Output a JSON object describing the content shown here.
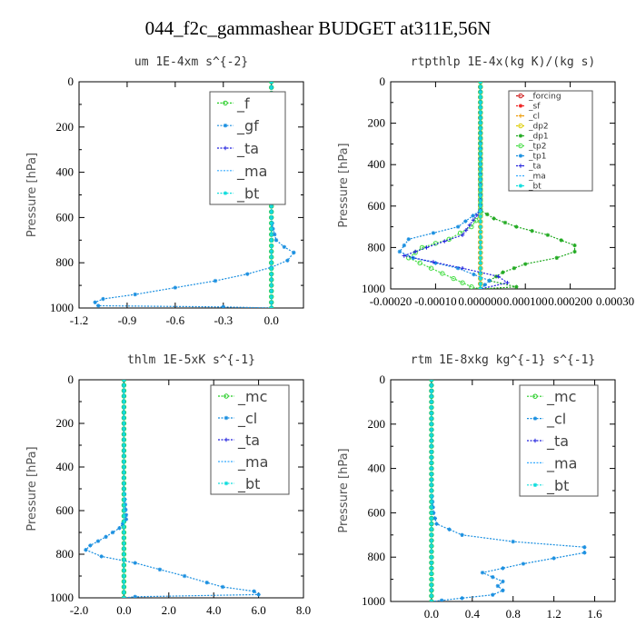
{
  "figure": {
    "title": "044_f2c_gammashear  BUDGET at311E,56N"
  },
  "chart_data": [
    {
      "type": "line",
      "title": "um   1E-4xm  s^{-2}",
      "ylabel": "Pressure [hPa]",
      "xlim": [
        -1.2,
        0.2
      ],
      "ylim": [
        1000,
        0
      ],
      "xticks": [
        "-1.2",
        "-0.9",
        "-0.6",
        "-0.3",
        "0.0"
      ],
      "xtick_values": [
        -1.2,
        -0.9,
        -0.6,
        -0.3,
        0.0
      ],
      "yticks": [
        "0",
        "200",
        "400",
        "600",
        "800",
        "1000"
      ],
      "legend_style": "big",
      "series": [
        {
          "name": "_f",
          "color": "#22cc22",
          "marker": "o",
          "values": [
            [
              0,
              0
            ],
            [
              0,
              100
            ],
            [
              0,
              200
            ],
            [
              0,
              300
            ],
            [
              0,
              400
            ],
            [
              0,
              500
            ],
            [
              0,
              600
            ],
            [
              0,
              700
            ],
            [
              0,
              800
            ],
            [
              0,
              900
            ],
            [
              0,
              1000
            ]
          ]
        },
        {
          "name": "_gf",
          "color": "#1a8fe0",
          "marker": "*",
          "values": [
            [
              0,
              0
            ],
            [
              0,
              300
            ],
            [
              0,
              500
            ],
            [
              0,
              600
            ],
            [
              0.01,
              650
            ],
            [
              0.03,
              700
            ],
            [
              0.08,
              730
            ],
            [
              0.14,
              755
            ],
            [
              0.1,
              790
            ],
            [
              0.0,
              820
            ],
            [
              -0.15,
              850
            ],
            [
              -0.35,
              880
            ],
            [
              -0.6,
              910
            ],
            [
              -0.85,
              940
            ],
            [
              -1.05,
              960
            ],
            [
              -1.1,
              975
            ],
            [
              -1.08,
              990
            ],
            [
              -0.3,
              995
            ],
            [
              0,
              1000
            ]
          ]
        },
        {
          "name": "_ta",
          "color": "#2222dd",
          "marker": "+",
          "values": [
            [
              0,
              0
            ],
            [
              0,
              500
            ],
            [
              0,
              800
            ],
            [
              0,
              1000
            ]
          ]
        },
        {
          "name": "_ma",
          "color": "#33aaff",
          "marker": "-",
          "values": [
            [
              0,
              0
            ],
            [
              0,
              1000
            ]
          ]
        },
        {
          "name": "_bt",
          "color": "#11dddd",
          "marker": "*",
          "values": [
            [
              0,
              0
            ],
            [
              0,
              1000
            ]
          ]
        }
      ]
    },
    {
      "type": "line",
      "title": "rtpthlp   1E-4x(kg K)/(kg s)",
      "ylabel": "Pressure [hPa]",
      "xlim": [
        -0.0002,
        0.0003
      ],
      "ylim": [
        1000,
        0
      ],
      "xticks": [
        "-0.00020",
        "-0.00010",
        "0.000000",
        "0.000100",
        "0.000200",
        "0.00030"
      ],
      "xtick_values": [
        -0.0002,
        -0.0001,
        0.0,
        0.0001,
        0.0002,
        0.0003
      ],
      "yticks": [
        "0",
        "200",
        "400",
        "600",
        "800",
        "1000"
      ],
      "legend_style": "small",
      "series": [
        {
          "name": "_forcing",
          "color": "#cc1111",
          "marker": "o",
          "values": [
            [
              0,
              0
            ],
            [
              0,
              200
            ],
            [
              0,
              400
            ],
            [
              0,
              600
            ],
            [
              0,
              800
            ],
            [
              0,
              1000
            ]
          ]
        },
        {
          "name": "_sf",
          "color": "#ee2222",
          "marker": "*",
          "values": [
            [
              0,
              0
            ],
            [
              0,
              1000
            ]
          ]
        },
        {
          "name": "_cl",
          "color": "#ee9900",
          "marker": "+",
          "values": [
            [
              0,
              0
            ],
            [
              0,
              1000
            ]
          ]
        },
        {
          "name": "_dp2",
          "color": "#ddcc00",
          "marker": "o",
          "values": [
            [
              0,
              0
            ],
            [
              0,
              1000
            ]
          ]
        },
        {
          "name": "_dp1",
          "color": "#22aa22",
          "marker": "*",
          "values": [
            [
              0,
              0
            ],
            [
              0,
              620
            ],
            [
              3e-05,
              660
            ],
            [
              8e-05,
              700
            ],
            [
              0.00015,
              740
            ],
            [
              0.00021,
              790
            ],
            [
              0.00021,
              820
            ],
            [
              0.00017,
              850
            ],
            [
              0.0001,
              880
            ],
            [
              5e-05,
              920
            ],
            [
              2e-05,
              960
            ],
            [
              8e-05,
              990
            ],
            [
              0,
              1000
            ]
          ]
        },
        {
          "name": "_tp2",
          "color": "#44dd44",
          "marker": "o",
          "values": [
            [
              0,
              0
            ],
            [
              0,
              640
            ],
            [
              -2e-05,
              700
            ],
            [
              -7e-05,
              760
            ],
            [
              -0.00013,
              800
            ],
            [
              -0.00016,
              850
            ],
            [
              -0.00011,
              900
            ],
            [
              -6e-05,
              950
            ],
            [
              -2e-05,
              990
            ],
            [
              0,
              1000
            ]
          ]
        },
        {
          "name": "_tp1",
          "color": "#1a8fe0",
          "marker": "*",
          "values": [
            [
              0,
              0
            ],
            [
              0,
              620
            ],
            [
              -5e-05,
              700
            ],
            [
              -0.00016,
              760
            ],
            [
              -0.00018,
              820
            ],
            [
              -0.00015,
              850
            ],
            [
              -5e-05,
              900
            ],
            [
              2e-05,
              960
            ],
            [
              0,
              1000
            ]
          ]
        },
        {
          "name": "_ta",
          "color": "#2222dd",
          "marker": "+",
          "values": [
            [
              0,
              0
            ],
            [
              0,
              620
            ],
            [
              -4e-05,
              740
            ],
            [
              -0.00012,
              800
            ],
            [
              -0.00017,
              840
            ],
            [
              -4e-05,
              900
            ],
            [
              4e-05,
              940
            ],
            [
              6e-05,
              970
            ],
            [
              0,
              1000
            ]
          ]
        },
        {
          "name": "_ma",
          "color": "#33aaff",
          "marker": "-",
          "values": [
            [
              0,
              0
            ],
            [
              0,
              1000
            ]
          ]
        },
        {
          "name": "_bt",
          "color": "#11dddd",
          "marker": "*",
          "values": [
            [
              0,
              0
            ],
            [
              0,
              1000
            ]
          ]
        }
      ]
    },
    {
      "type": "line",
      "title": "thlm   1E-5xK  s^{-1}",
      "ylabel": "Pressure [hPa]",
      "xlim": [
        -2.0,
        8.0
      ],
      "ylim": [
        1000,
        0
      ],
      "xticks": [
        "-2.0",
        "0.0",
        "2.0",
        "4.0",
        "6.0",
        "8.0"
      ],
      "xtick_values": [
        -2.0,
        0.0,
        2.0,
        4.0,
        6.0,
        8.0
      ],
      "yticks": [
        "0",
        "200",
        "400",
        "600",
        "800",
        "1000"
      ],
      "legend_style": "big",
      "series": [
        {
          "name": "_mc",
          "color": "#22cc22",
          "marker": "o",
          "values": [
            [
              0,
              0
            ],
            [
              0,
              100
            ],
            [
              0,
              200
            ],
            [
              0,
              300
            ],
            [
              0,
              400
            ],
            [
              0,
              500
            ],
            [
              0,
              600
            ],
            [
              0,
              700
            ],
            [
              0,
              800
            ],
            [
              0,
              900
            ],
            [
              0,
              1000
            ]
          ]
        },
        {
          "name": "_cl",
          "color": "#1a8fe0",
          "marker": "*",
          "values": [
            [
              0,
              0
            ],
            [
              0,
              500
            ],
            [
              0.1,
              620
            ],
            [
              0.1,
              640
            ],
            [
              -0.2,
              680
            ],
            [
              -0.8,
              720
            ],
            [
              -1.5,
              760
            ],
            [
              -1.7,
              780
            ],
            [
              -1.0,
              810
            ],
            [
              0.5,
              840
            ],
            [
              1.6,
              870
            ],
            [
              2.7,
              900
            ],
            [
              3.7,
              930
            ],
            [
              4.4,
              950
            ],
            [
              5.8,
              970
            ],
            [
              6.0,
              985
            ],
            [
              0.5,
              995
            ],
            [
              0,
              1000
            ]
          ]
        },
        {
          "name": "_ta",
          "color": "#2222dd",
          "marker": "+",
          "values": [
            [
              0,
              0
            ],
            [
              0,
              1000
            ]
          ]
        },
        {
          "name": "_ma",
          "color": "#33aaff",
          "marker": "-",
          "values": [
            [
              0,
              0
            ],
            [
              0,
              1000
            ]
          ]
        },
        {
          "name": "_bt",
          "color": "#11dddd",
          "marker": "*",
          "values": [
            [
              0,
              0
            ],
            [
              0,
              1000
            ]
          ]
        }
      ]
    },
    {
      "type": "line",
      "title": "rtm   1E-8xkg  kg^{-1}  s^{-1}",
      "ylabel": "Pressure [hPa]",
      "xlim": [
        -0.4,
        1.8
      ],
      "ylim": [
        1000,
        0
      ],
      "xticks": [
        "0.0",
        "0.4",
        "0.8",
        "1.2",
        "1.6"
      ],
      "xtick_values": [
        0.0,
        0.4,
        0.8,
        1.2,
        1.6
      ],
      "yticks": [
        "0",
        "200",
        "400",
        "600",
        "800",
        "1000"
      ],
      "legend_style": "big",
      "series": [
        {
          "name": "_mc",
          "color": "#22cc22",
          "marker": "o",
          "values": [
            [
              0,
              0
            ],
            [
              0,
              100
            ],
            [
              0,
              200
            ],
            [
              0,
              300
            ],
            [
              0,
              400
            ],
            [
              0,
              500
            ],
            [
              0,
              600
            ],
            [
              0,
              700
            ],
            [
              0,
              800
            ],
            [
              0,
              900
            ],
            [
              0,
              1000
            ]
          ]
        },
        {
          "name": "_cl",
          "color": "#1a8fe0",
          "marker": "*",
          "values": [
            [
              0,
              0
            ],
            [
              0,
              500
            ],
            [
              0.02,
              600
            ],
            [
              0.05,
              650
            ],
            [
              0.3,
              700
            ],
            [
              0.8,
              730
            ],
            [
              1.5,
              755
            ],
            [
              1.5,
              780
            ],
            [
              0.9,
              830
            ],
            [
              0.7,
              850
            ],
            [
              0.5,
              870
            ],
            [
              0.6,
              890
            ],
            [
              0.7,
              910
            ],
            [
              0.65,
              930
            ],
            [
              0.7,
              950
            ],
            [
              0.6,
              970
            ],
            [
              0.3,
              985
            ],
            [
              0.1,
              995
            ],
            [
              0,
              1000
            ]
          ]
        },
        {
          "name": "_ta",
          "color": "#2222dd",
          "marker": "+",
          "values": [
            [
              0,
              0
            ],
            [
              0,
              1000
            ]
          ]
        },
        {
          "name": "_ma",
          "color": "#33aaff",
          "marker": "-",
          "values": [
            [
              0,
              0
            ],
            [
              0,
              1000
            ]
          ]
        },
        {
          "name": "_bt",
          "color": "#11dddd",
          "marker": "*",
          "values": [
            [
              0,
              0
            ],
            [
              0,
              1000
            ]
          ]
        }
      ]
    }
  ]
}
